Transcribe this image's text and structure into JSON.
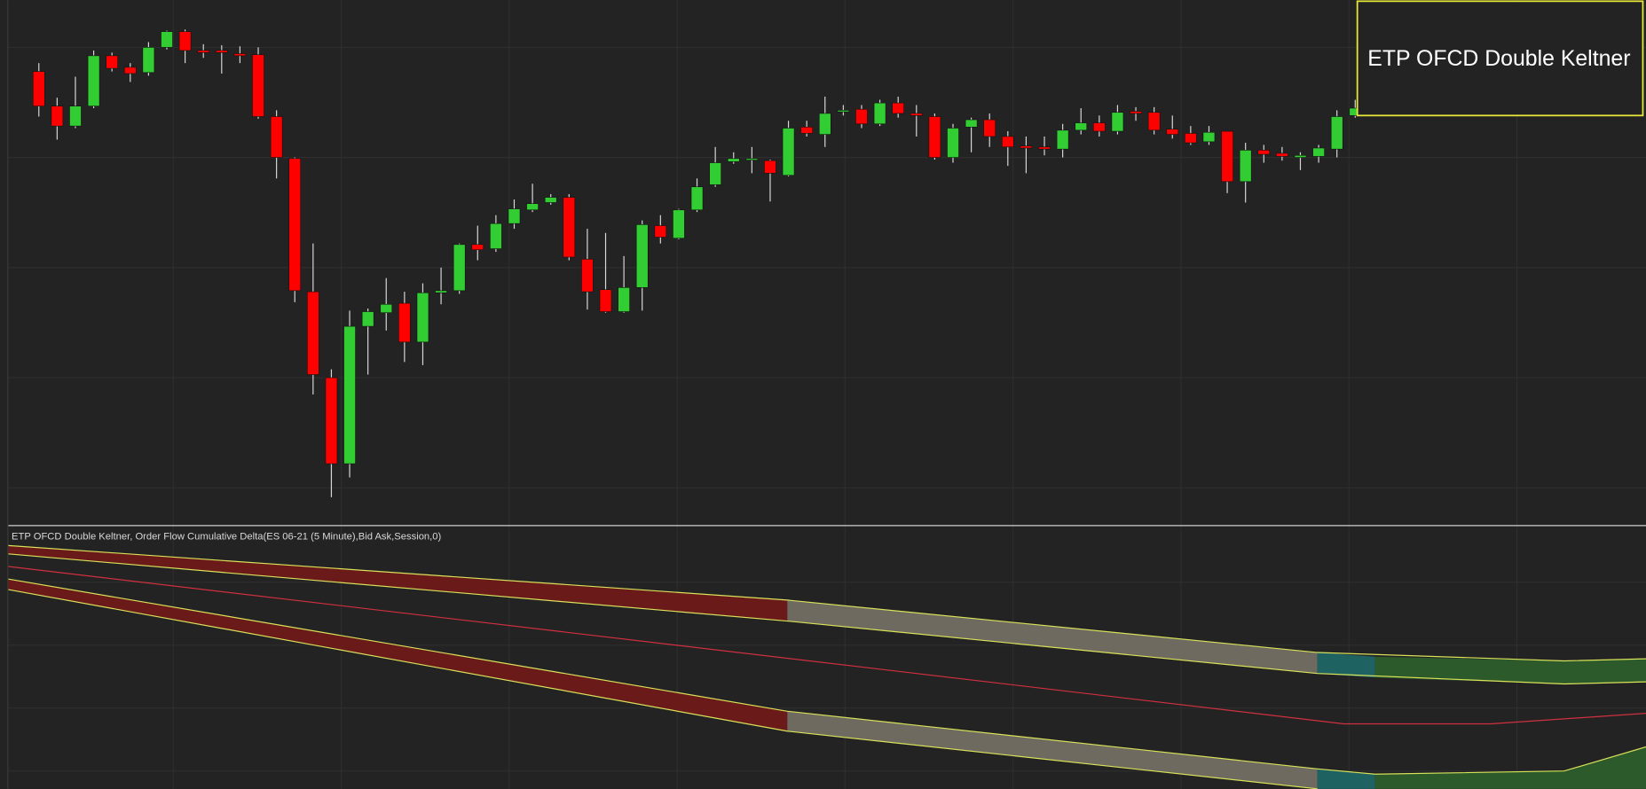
{
  "chart_data": {
    "type": "candlestick",
    "title": "ETP OFCD Double Keltner",
    "subtitle": "ETP OFCD Double Keltner, Order Flow Cumulative Delta(ES 06-21 (5 Minute),Bid Ask,Session,0)",
    "up_color": "#32cd32",
    "down_color": "#ff0000",
    "ylim": [
      0,
      500
    ],
    "open": [
      432,
      399,
      380,
      399,
      447,
      436,
      431,
      455,
      470,
      452,
      452,
      449,
      448,
      389,
      349,
      222,
      140,
      58,
      189,
      202,
      211,
      174,
      221,
      223,
      267,
      263,
      287,
      300,
      307,
      312,
      253,
      224,
      203,
      226,
      285,
      273,
      300,
      324,
      346,
      348,
      347,
      333,
      379,
      372,
      394,
      396,
      382,
      402,
      392,
      389,
      350,
      379,
      386,
      370,
      361,
      360,
      358,
      376,
      383,
      375,
      394,
      393,
      377,
      373,
      365,
      375,
      327,
      357,
      354,
      350,
      351,
      358,
      390
    ],
    "high": [
      440,
      407,
      427,
      452,
      450,
      440,
      460,
      471,
      472,
      458,
      457,
      456,
      455,
      395,
      350,
      268,
      148,
      204,
      206,
      235,
      222,
      230,
      245,
      268,
      285,
      295,
      310,
      325,
      315,
      315,
      282,
      278,
      256,
      290,
      295,
      301,
      330,
      360,
      355,
      360,
      348,
      385,
      385,
      408,
      400,
      400,
      405,
      408,
      400,
      392,
      382,
      388,
      392,
      375,
      370,
      370,
      382,
      397,
      390,
      400,
      398,
      398,
      390,
      380,
      380,
      375,
      364,
      362,
      360,
      355,
      362,
      395,
      405
    ],
    "low": [
      389,
      367,
      378,
      397,
      432,
      422,
      428,
      453,
      440,
      445,
      430,
      440,
      387,
      330,
      212,
      124,
      26,
      45,
      143,
      185,
      155,
      152,
      210,
      220,
      252,
      260,
      282,
      298,
      305,
      252,
      205,
      202,
      202,
      204,
      268,
      272,
      298,
      322,
      344,
      335,
      308,
      332,
      370,
      360,
      390,
      378,
      380,
      388,
      370,
      348,
      345,
      355,
      360,
      342,
      335,
      352,
      350,
      372,
      370,
      372,
      385,
      372,
      368,
      362,
      362,
      316,
      307,
      345,
      347,
      338,
      345,
      350,
      388
    ],
    "close": [
      399,
      380,
      399,
      447,
      435,
      430,
      455,
      470,
      452,
      450,
      450,
      447,
      389,
      350,
      223,
      143,
      58,
      189,
      203,
      210,
      174,
      221,
      223,
      267,
      262,
      287,
      301,
      306,
      312,
      255,
      222,
      203,
      226,
      286,
      274,
      300,
      322,
      345,
      349,
      349,
      335,
      378,
      373,
      392,
      395,
      382,
      402,
      392,
      390,
      350,
      378,
      386,
      370,
      360,
      359,
      358,
      376,
      383,
      375,
      393,
      392,
      376,
      372,
      364,
      374,
      327,
      357,
      353,
      351,
      352,
      359,
      389,
      397
    ]
  }
}
